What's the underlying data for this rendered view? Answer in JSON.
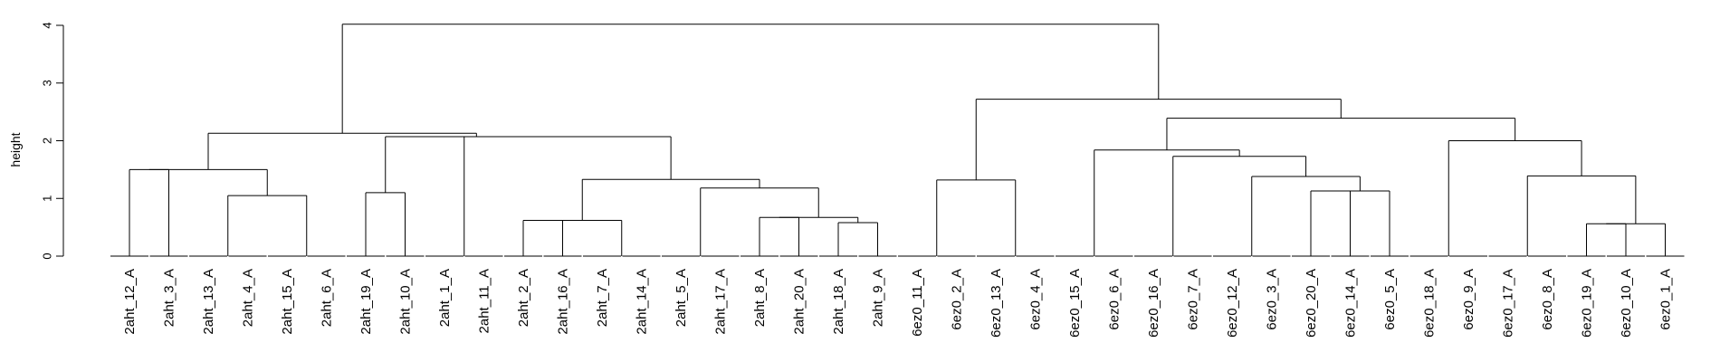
{
  "chart_data": {
    "type": "dendrogram",
    "ylabel": "height",
    "ylim": [
      0,
      4
    ],
    "yticks": [
      0,
      1,
      2,
      3,
      4
    ],
    "leaves": [
      "2aht_12_A",
      "2aht_3_A",
      "2aht_13_A",
      "2aht_4_A",
      "2aht_15_A",
      "2aht_6_A",
      "2aht_19_A",
      "2aht_10_A",
      "2aht_1_A",
      "2aht_11_A",
      "2aht_2_A",
      "2aht_16_A",
      "2aht_7_A",
      "2aht_14_A",
      "2aht_5_A",
      "2aht_17_A",
      "2aht_8_A",
      "2aht_20_A",
      "2aht_18_A",
      "2aht_9_A",
      "6ez0_11_A",
      "6ez0_2_A",
      "6ez0_13_A",
      "6ez0_4_A",
      "6ez0_15_A",
      "6ez0_6_A",
      "6ez0_16_A",
      "6ez0_7_A",
      "6ez0_12_A",
      "6ez0_3_A",
      "6ez0_20_A",
      "6ez0_14_A",
      "6ez0_5_A",
      "6ez0_18_A",
      "6ez0_9_A",
      "6ez0_17_A",
      "6ez0_8_A",
      "6ez0_19_A",
      "6ez0_10_A",
      "6ez0_1_A"
    ],
    "merges": [
      {
        "id": "A1",
        "left": "2aht_12_A",
        "right": "2aht_3_A",
        "height": 1.5
      },
      {
        "id": "A2",
        "left": "2aht_13_A",
        "right": "2aht_4_A",
        "height": 0
      },
      {
        "id": "A3",
        "left": "2aht_15_A",
        "right": "2aht_6_A",
        "height": 0
      },
      {
        "id": "A4",
        "left": "A2",
        "right": "A3",
        "height": 1.05
      },
      {
        "id": "A5",
        "left": "A1",
        "right": "A4",
        "height": 1.5
      },
      {
        "id": "A6",
        "left": "2aht_19_A",
        "right": "2aht_10_A",
        "height": 1.1
      },
      {
        "id": "A7",
        "left": "2aht_1_A",
        "right": "2aht_11_A",
        "height": 0
      },
      {
        "id": "A8",
        "left": "2aht_2_A",
        "right": "2aht_16_A",
        "height": 0.62
      },
      {
        "id": "A9",
        "left": "2aht_7_A",
        "right": "2aht_14_A",
        "height": 0
      },
      {
        "id": "A10",
        "left": "2aht_5_A",
        "right": "2aht_17_A",
        "height": 0
      },
      {
        "id": "A11",
        "left": "2aht_8_A",
        "right": "2aht_20_A",
        "height": 0.67
      },
      {
        "id": "A12",
        "left": "2aht_18_A",
        "right": "2aht_9_A",
        "height": 0.58
      },
      {
        "id": "A13",
        "left": "A11",
        "right": "A12",
        "height": 0.67
      },
      {
        "id": "A14",
        "left": "A10",
        "right": "A13",
        "height": 1.18
      },
      {
        "id": "A15",
        "left": "A8",
        "right": "A9",
        "height": 0.62
      },
      {
        "id": "A16",
        "left": "A15",
        "right": "A14",
        "height": 1.33
      },
      {
        "id": "A17",
        "left": "A7",
        "right": "A16",
        "height": 2.07
      },
      {
        "id": "A18",
        "left": "A6",
        "right": "A17",
        "height": 2.07
      },
      {
        "id": "A19",
        "left": "A5",
        "right": "A18",
        "height": 2.13
      },
      {
        "id": "B1",
        "left": "6ez0_11_A",
        "right": "6ez0_2_A",
        "height": 0
      },
      {
        "id": "B2",
        "left": "6ez0_13_A",
        "right": "6ez0_4_A",
        "height": 0
      },
      {
        "id": "B3",
        "left": "B1",
        "right": "B2",
        "height": 1.32
      },
      {
        "id": "B4",
        "left": "6ez0_15_A",
        "right": "6ez0_6_A",
        "height": 0
      },
      {
        "id": "B5",
        "left": "6ez0_16_A",
        "right": "6ez0_7_A",
        "height": 0
      },
      {
        "id": "B6",
        "left": "6ez0_12_A",
        "right": "6ez0_3_A",
        "height": 0
      },
      {
        "id": "B7",
        "left": "6ez0_20_A",
        "right": "6ez0_14_A",
        "height": 1.13
      },
      {
        "id": "B8",
        "left": "6ez0_5_A",
        "right": "B7",
        "height": 1.13
      },
      {
        "id": "B9",
        "left": "B6",
        "right": "B8",
        "height": 1.38
      },
      {
        "id": "B10",
        "left": "B5",
        "right": "B9",
        "height": 1.73
      },
      {
        "id": "B11",
        "left": "B4",
        "right": "B10",
        "height": 1.84
      },
      {
        "id": "B12",
        "left": "6ez0_18_A",
        "right": "6ez0_9_A",
        "height": 0
      },
      {
        "id": "B13",
        "left": "6ez0_17_A",
        "right": "6ez0_8_A",
        "height": 0
      },
      {
        "id": "B14",
        "left": "6ez0_19_A",
        "right": "6ez0_10_A",
        "height": 0.56
      },
      {
        "id": "B15",
        "left": "B14",
        "right": "6ez0_1_A",
        "height": 0.56
      },
      {
        "id": "B16",
        "left": "B13",
        "right": "B15",
        "height": 1.39
      },
      {
        "id": "B17",
        "left": "B12",
        "right": "B16",
        "height": 2.0
      },
      {
        "id": "B18",
        "left": "B11",
        "right": "B17",
        "height": 2.39
      },
      {
        "id": "B19",
        "left": "B3",
        "right": "B18",
        "height": 2.72
      },
      {
        "id": "ROOT",
        "left": "A19",
        "right": "B19",
        "height": 4.02
      }
    ]
  }
}
